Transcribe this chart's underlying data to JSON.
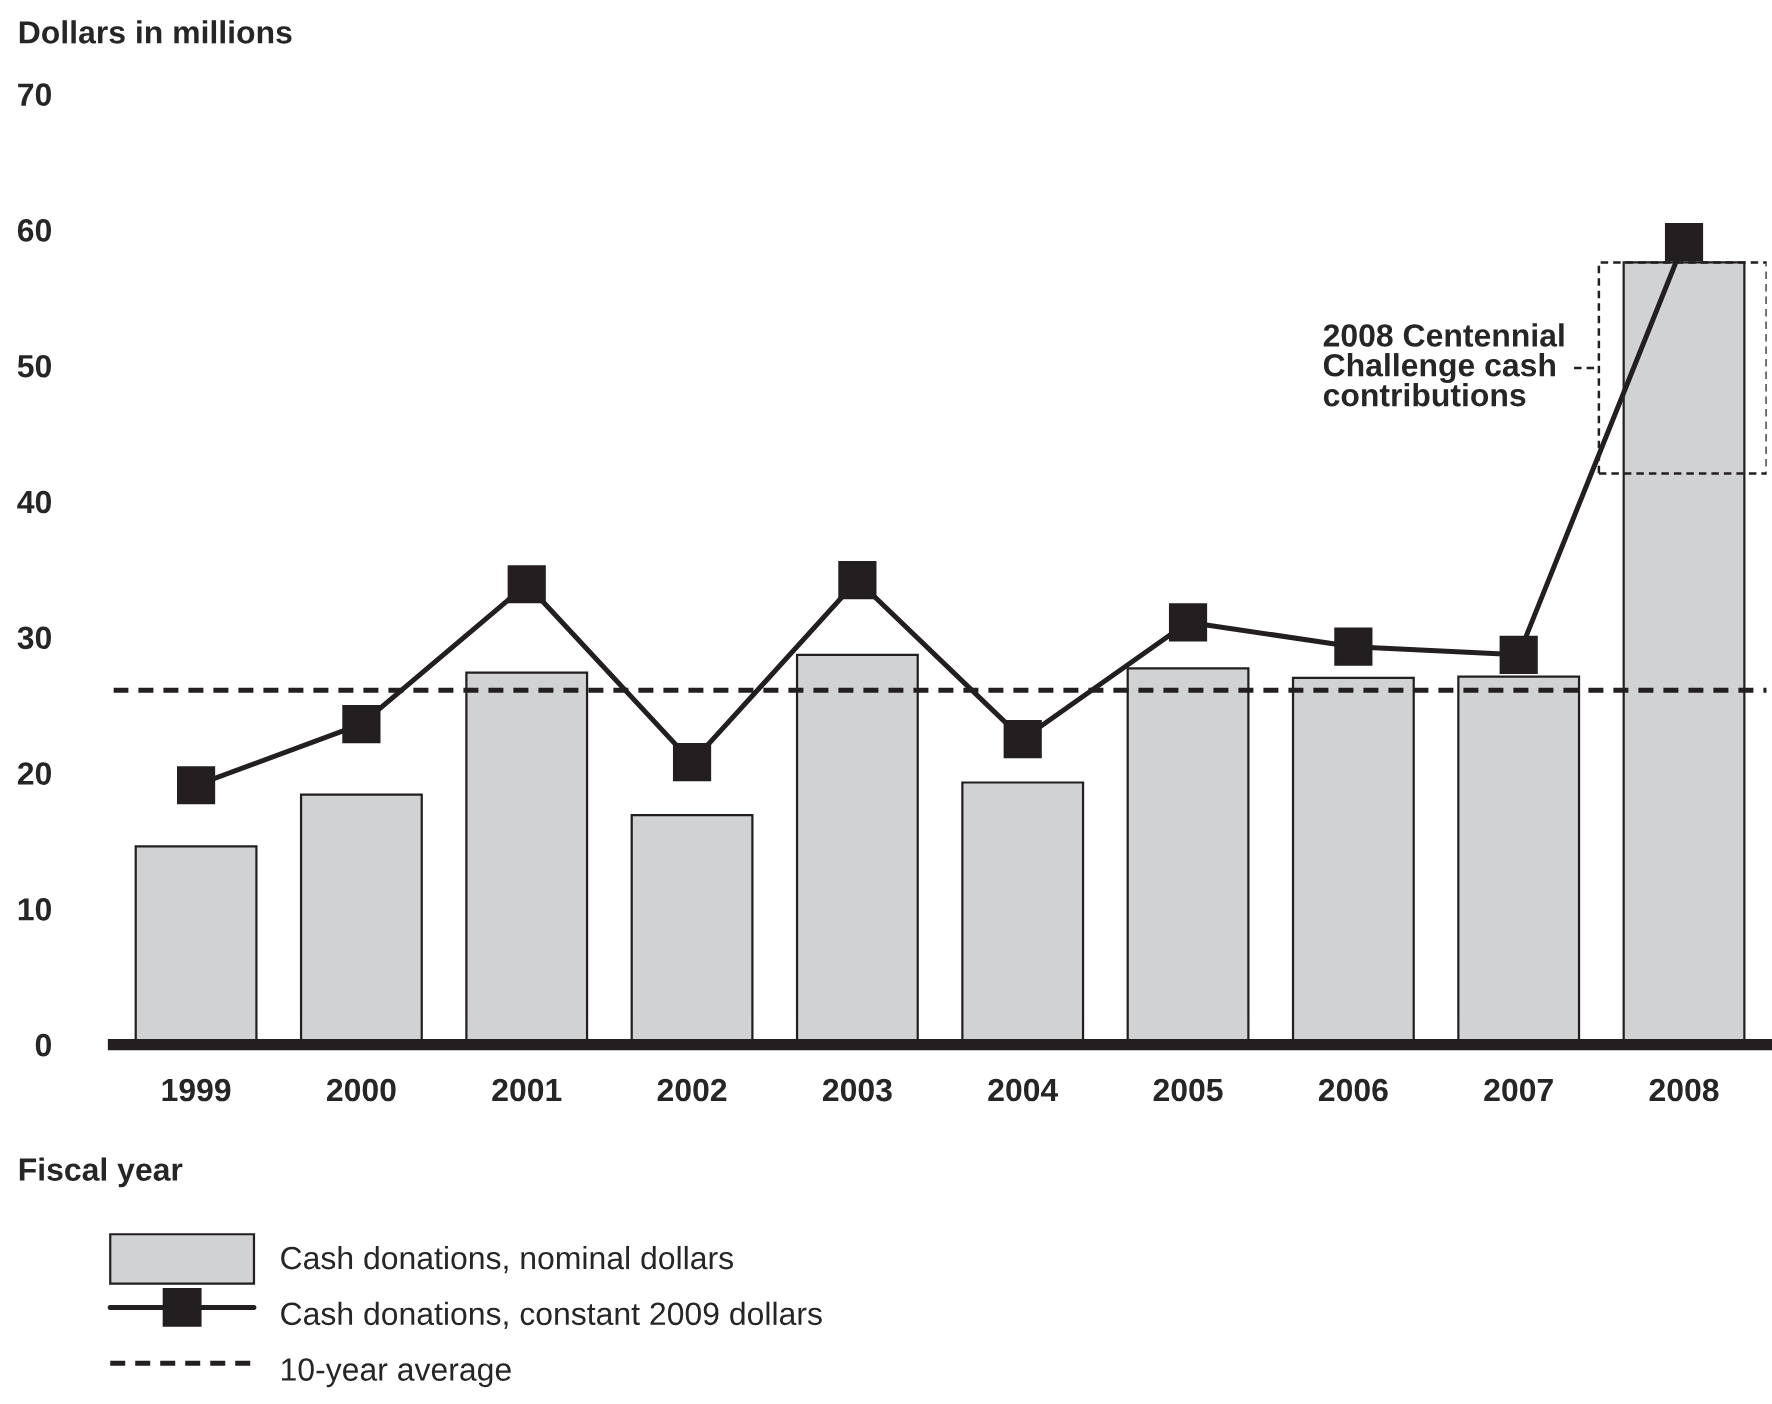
{
  "chart_data": {
    "type": "bar",
    "ylabel": "Dollars in millions",
    "xlabel": "Fiscal year",
    "categories": [
      "1999",
      "2000",
      "2001",
      "2002",
      "2003",
      "2004",
      "2005",
      "2006",
      "2007",
      "2008"
    ],
    "series": [
      {
        "name": "Cash donations, nominal dollars",
        "color": "#d1d2d4",
        "values": [
          14.6,
          18.4,
          27.4,
          16.9,
          28.7,
          19.3,
          27.7,
          27.0,
          27.1,
          57.6
        ]
      },
      {
        "name": "Cash donations, constant 2009 dollars",
        "type": "line",
        "color": "#231f20",
        "marker": "square",
        "values": [
          19.1,
          23.6,
          33.9,
          20.8,
          34.2,
          22.5,
          31.1,
          29.3,
          28.7,
          59.1
        ]
      }
    ],
    "ref_lines": [
      {
        "axis": "y",
        "value": 26.1,
        "label": "10-year average",
        "line_style": "dashed",
        "color": "#231f20"
      }
    ],
    "annotations": [
      "2008 Centennial\nChallenge cash\ncontributions"
    ],
    "ylim": [
      0,
      70
    ],
    "yticks": [
      0,
      10,
      20,
      30,
      40,
      50,
      60,
      70
    ],
    "grid": false,
    "legend": "bottom"
  }
}
